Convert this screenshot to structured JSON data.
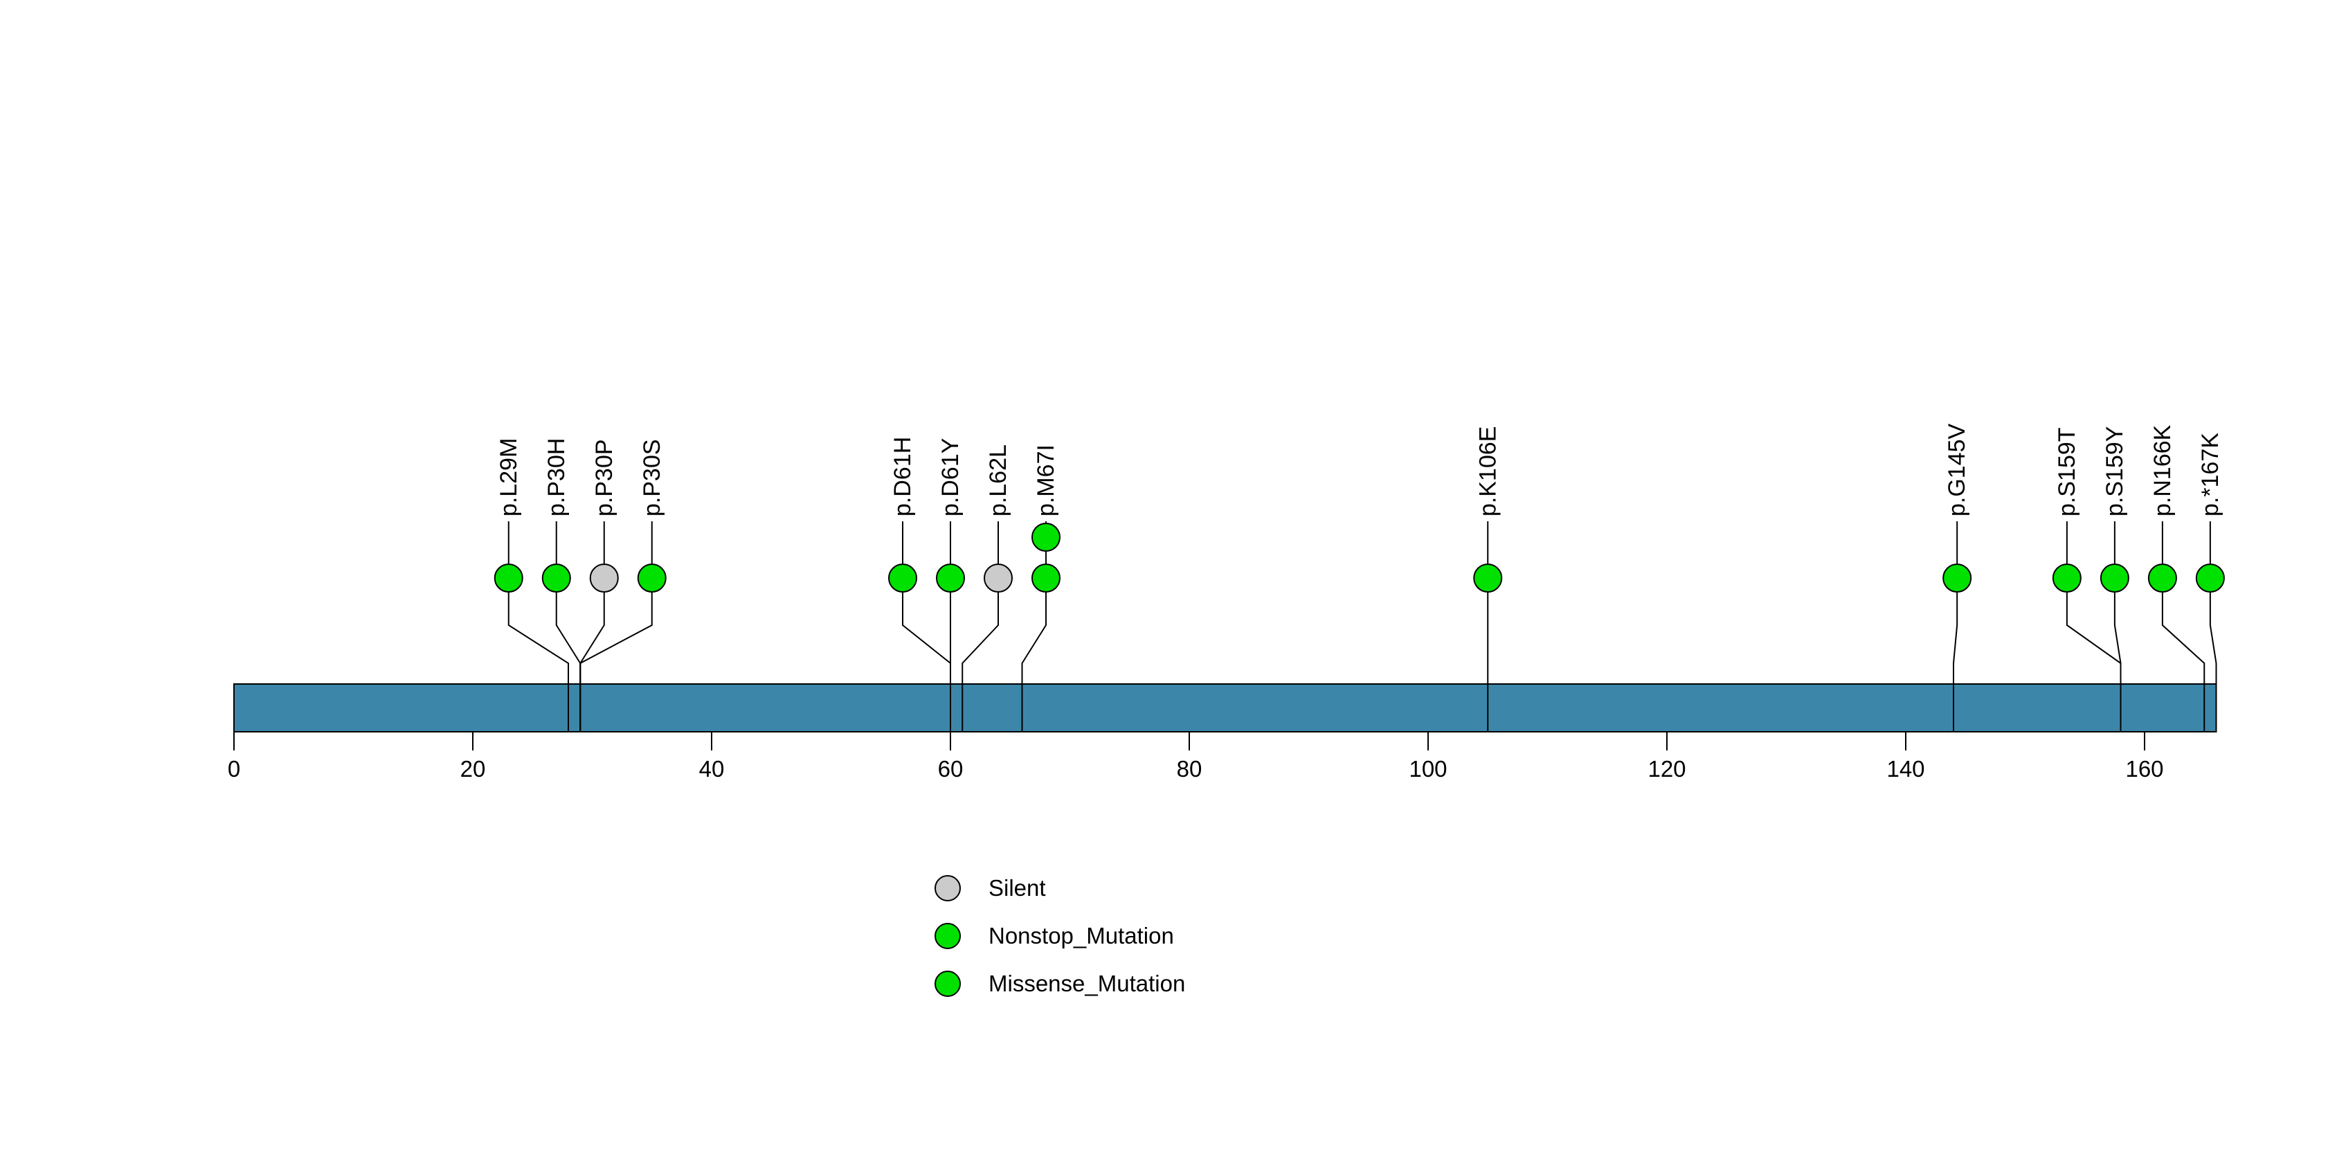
{
  "chart_data": {
    "type": "lollipop",
    "description": "Protein mutation lollipop plot over a gene body bar",
    "protein_length": 167,
    "axis_range": [
      0,
      167
    ],
    "xticks": [
      0,
      20,
      40,
      60,
      80,
      100,
      120,
      140,
      160
    ],
    "grid": false,
    "gene_body_color": "#3C87A9",
    "stem_color": "#000000",
    "lollipop_colors": {
      "Missense_Mutation": "#00E100",
      "Nonstop_Mutation": "#00E100",
      "Silent": "#CBCBCB"
    },
    "mutations": [
      {
        "label": "p.L29M",
        "pos": 29,
        "label_pos": 24,
        "type": "Missense_Mutation",
        "count": 1
      },
      {
        "label": "p.P30H",
        "pos": 30,
        "label_pos": 28,
        "type": "Missense_Mutation",
        "count": 1
      },
      {
        "label": "p.P30P",
        "pos": 30,
        "label_pos": 32,
        "type": "Silent",
        "count": 1
      },
      {
        "label": "p.P30S",
        "pos": 30,
        "label_pos": 36,
        "type": "Missense_Mutation",
        "count": 1
      },
      {
        "label": "p.D61H",
        "pos": 61,
        "label_pos": 57,
        "type": "Missense_Mutation",
        "count": 1
      },
      {
        "label": "p.D61Y",
        "pos": 61,
        "label_pos": 61,
        "type": "Missense_Mutation",
        "count": 1
      },
      {
        "label": "p.L62L",
        "pos": 62,
        "label_pos": 65,
        "type": "Silent",
        "count": 1
      },
      {
        "label": "p.M67I",
        "pos": 67,
        "label_pos": 69,
        "type": "Missense_Mutation",
        "count": 2
      },
      {
        "label": "p.K106E",
        "pos": 106,
        "label_pos": 106,
        "type": "Missense_Mutation",
        "count": 1
      },
      {
        "label": "p.G145V",
        "pos": 145,
        "label_pos": 145.3,
        "type": "Missense_Mutation",
        "count": 1
      },
      {
        "label": "p.S159T",
        "pos": 159,
        "label_pos": 154.5,
        "type": "Missense_Mutation",
        "count": 1
      },
      {
        "label": "p.S159Y",
        "pos": 159,
        "label_pos": 158.5,
        "type": "Missense_Mutation",
        "count": 1
      },
      {
        "label": "p.N166K",
        "pos": 166,
        "label_pos": 162.5,
        "type": "Missense_Mutation",
        "count": 1
      },
      {
        "label": "p.*167K",
        "pos": 167,
        "label_pos": 166.5,
        "type": "Nonstop_Mutation",
        "count": 1
      }
    ],
    "legend": {
      "position": "bottom-center",
      "items": [
        {
          "label": "Silent",
          "color": "#CBCBCB"
        },
        {
          "label": "Nonstop_Mutation",
          "color": "#00E100"
        },
        {
          "label": "Missense_Mutation",
          "color": "#00E100"
        }
      ]
    }
  }
}
